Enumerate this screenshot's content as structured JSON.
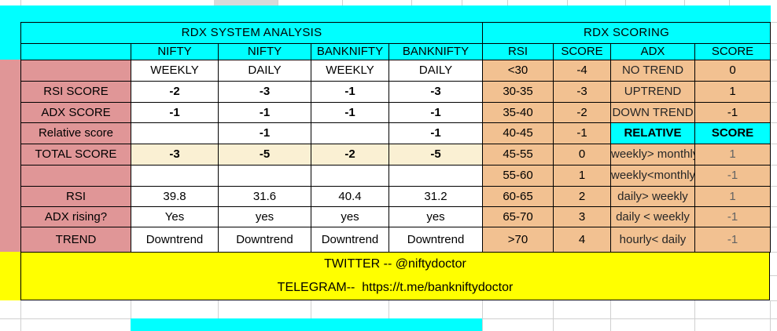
{
  "left_table": {
    "title": "RDX SYSTEM ANALYSIS",
    "col_headers": [
      "NIFTY",
      "NIFTY",
      "BANKNIFTY",
      "BANKNIFTY"
    ],
    "rows": [
      {
        "label": "",
        "cells": [
          "WEEKLY",
          "DAILY",
          "WEEKLY",
          "DAILY"
        ]
      },
      {
        "label": "RSI SCORE",
        "cells": [
          "-2",
          "-3",
          "-1",
          "-3"
        ]
      },
      {
        "label": "ADX SCORE",
        "cells": [
          "-1",
          "-1",
          "-1",
          "-1"
        ]
      },
      {
        "label": "Relative score",
        "cells": [
          "",
          "-1",
          "",
          "-1"
        ]
      },
      {
        "label": "TOTAL SCORE",
        "cells": [
          "-3",
          "-5",
          "-2",
          "-5"
        ]
      },
      {
        "label": "",
        "cells": [
          "",
          "",
          "",
          ""
        ]
      },
      {
        "label": "RSI",
        "cells": [
          "39.8",
          "31.6",
          "40.4",
          "31.2"
        ]
      },
      {
        "label": "ADX rising?",
        "cells": [
          "Yes",
          "yes",
          "yes",
          "yes"
        ]
      },
      {
        "label": "TREND",
        "cells": [
          "Downtrend",
          "Downtrend",
          "Downtrend",
          "Downtrend"
        ]
      }
    ]
  },
  "right_table": {
    "title": "RDX SCORING",
    "col_headers": [
      "RSI",
      "SCORE",
      "ADX",
      "SCORE"
    ],
    "rsi_scale": [
      {
        "range": "<30",
        "score": "-4"
      },
      {
        "range": "30-35",
        "score": "-3"
      },
      {
        "range": "35-40",
        "score": "-2"
      },
      {
        "range": "40-45",
        "score": "-1"
      },
      {
        "range": "45-55",
        "score": "0"
      },
      {
        "range": "55-60",
        "score": "1"
      },
      {
        "range": "60-65",
        "score": "2"
      },
      {
        "range": "65-70",
        "score": "3"
      },
      {
        "range": ">70",
        "score": "4"
      }
    ],
    "adx_scale": [
      {
        "label": "NO TREND",
        "score": "0"
      },
      {
        "label": "UPTREND",
        "score": "1"
      },
      {
        "label": "DOWN TREND",
        "score": "-1"
      }
    ],
    "relative_header": {
      "label": "RELATIVE",
      "score": "SCORE"
    },
    "relative_scale": [
      {
        "label": "weekly> monthly",
        "score": "1"
      },
      {
        "label": "weekly<monthly",
        "score": "-1"
      },
      {
        "label": "daily> weekly",
        "score": "1"
      },
      {
        "label": "daily < weekly",
        "score": "-1"
      },
      {
        "label": "hourly< daily",
        "score": "-1"
      }
    ]
  },
  "footer": {
    "twitter": "TWITTER -- @niftydoctor",
    "telegram": "TELEGRAM--  https://t.me/bankniftydoctor"
  },
  "colors": {
    "cyan": "#00FFFF",
    "pink": "#E09697",
    "orange": "#F2C191",
    "cream": "#FAF0D3",
    "yellow": "#FFFF00",
    "gridline": "#D0D0D0"
  }
}
